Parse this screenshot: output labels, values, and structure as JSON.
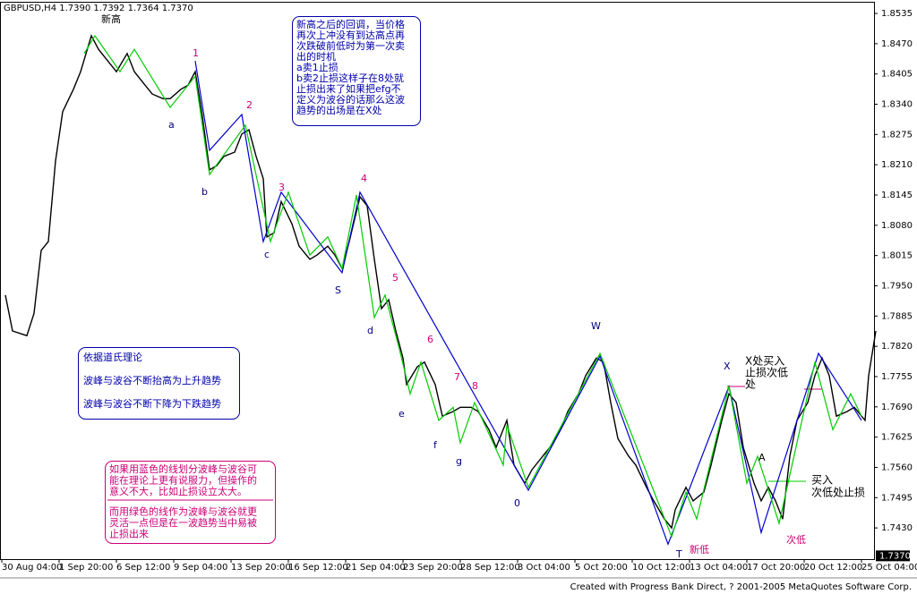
{
  "header": "GBPUSD,H4  1.7390 1.7392 1.7364 1.7370",
  "footer": "Created with Progress Bank Direct, ? 2001-2005 MetaQuotes Software Corp.",
  "chart_data": {
    "type": "line",
    "series": [
      {
        "color": "#000000",
        "x": [
          1,
          3,
          7,
          9,
          11,
          13,
          15,
          17,
          20,
          22,
          25,
          27,
          30,
          32,
          35,
          37,
          40,
          42,
          45,
          47,
          50,
          52,
          54,
          56,
          58,
          60,
          62,
          65,
          67,
          69,
          71,
          73,
          74,
          76,
          78,
          81,
          83,
          86,
          88,
          91,
          93,
          95,
          97,
          100,
          102,
          104,
          106,
          108,
          110,
          112,
          113,
          116,
          118,
          121,
          123,
          126,
          128,
          131,
          133,
          136,
          138,
          141,
          143,
          146,
          148,
          151,
          153,
          156,
          158,
          161,
          163,
          166,
          168,
          170,
          172,
          175,
          177,
          180,
          182,
          185,
          187,
          188,
          191,
          193,
          196,
          198,
          201,
          203,
          205,
          207,
          210,
          212,
          214,
          216,
          218,
          220,
          222,
          225,
          227,
          229,
          231,
          233,
          236,
          238,
          241,
          242,
          244
        ],
        "values": [
          1.793,
          1.7853,
          1.7843,
          1.7891,
          1.8026,
          1.8045,
          1.8218,
          1.8324,
          1.8372,
          1.841,
          1.8487,
          1.8458,
          1.8429,
          1.841,
          1.8449,
          1.841,
          1.8381,
          1.8362,
          1.8352,
          1.8352,
          1.8372,
          1.8381,
          1.841,
          1.8314,
          1.8199,
          1.8208,
          1.8228,
          1.8237,
          1.8276,
          1.8285,
          1.8228,
          1.818,
          1.8055,
          1.8064,
          1.8131,
          1.8083,
          1.8035,
          1.8007,
          1.8016,
          1.8035,
          1.8016,
          1.7987,
          1.8045,
          1.8141,
          1.8122,
          1.8007,
          1.7901,
          1.792,
          1.7853,
          1.7795,
          1.7738,
          1.7776,
          1.7786,
          1.7738,
          1.767,
          1.768,
          1.7689,
          1.7689,
          1.768,
          1.7641,
          1.7603,
          1.7661,
          1.7565,
          1.7526,
          1.7555,
          1.7584,
          1.7603,
          1.7641,
          1.768,
          1.7718,
          1.7757,
          1.7795,
          1.7786,
          1.7699,
          1.7622,
          1.7584,
          1.7565,
          1.7517,
          1.7488,
          1.7449,
          1.743,
          1.7469,
          1.7517,
          1.7488,
          1.7507,
          1.7565,
          1.7661,
          1.7718,
          1.7699,
          1.7603,
          1.7526,
          1.7488,
          1.7517,
          1.7488,
          1.7449,
          1.7584,
          1.7661,
          1.7699,
          1.7757,
          1.7795,
          1.7757,
          1.767,
          1.768,
          1.7689,
          1.7661,
          1.7757,
          1.7853
        ]
      },
      {
        "color": "#0000cc",
        "x": [
          54,
          58,
          67,
          73,
          78,
          95,
          100,
          147,
          167,
          186,
          203,
          212,
          228,
          240
        ],
        "values": [
          1.8433,
          1.8241,
          1.8318,
          1.8045,
          1.8151,
          1.7978,
          1.8151,
          1.7511,
          1.7799,
          1.7395,
          1.7734,
          1.742,
          1.7805,
          1.7661
        ]
      },
      {
        "color": "#00cc00",
        "x": [
          23,
          26,
          33,
          37,
          47,
          54,
          58,
          68,
          75,
          80,
          86,
          91,
          95,
          99,
          104,
          107,
          111,
          114,
          117,
          122,
          126,
          128,
          132,
          140,
          141,
          147,
          167,
          187,
          191,
          194,
          203,
          208,
          211,
          217,
          227,
          232,
          237,
          240
        ],
        "values": [
          1.8449,
          1.8487,
          1.841,
          1.8458,
          1.8333,
          1.84,
          1.8189,
          1.8295,
          1.8045,
          1.8151,
          1.8016,
          1.8055,
          1.7987,
          1.8145,
          1.7882,
          1.793,
          1.7814,
          1.7718,
          1.7786,
          1.7661,
          1.7689,
          1.7613,
          1.7699,
          1.7565,
          1.7651,
          1.7517,
          1.7805,
          1.7411,
          1.7507,
          1.7449,
          1.7734,
          1.7526,
          1.7584,
          1.744,
          1.7786,
          1.7641,
          1.7718,
          1.767
        ]
      }
    ],
    "xlim": [
      -0.5,
      243.5
    ],
    "xticks": [
      {
        "value": 0,
        "label": "30 Aug 04:00"
      },
      {
        "value": 16,
        "label": "1 Sep 20:00"
      },
      {
        "value": 32,
        "label": "6 Sep 12:00"
      },
      {
        "value": 48,
        "label": "9 Sep 04:00"
      },
      {
        "value": 64,
        "label": "13 Sep 20:00"
      },
      {
        "value": 80,
        "label": "16 Sep 12:00"
      },
      {
        "value": 96,
        "label": "21 Sep 04:00"
      },
      {
        "value": 112,
        "label": "23 Sep 20:00"
      },
      {
        "value": 128,
        "label": "28 Sep 12:00"
      },
      {
        "value": 144,
        "label": "3 Oct 04:00"
      },
      {
        "value": 160,
        "label": "5 Oct 20:00"
      },
      {
        "value": 176,
        "label": "10 Oct 12:00"
      },
      {
        "value": 192,
        "label": "13 Oct 04:00"
      },
      {
        "value": 208,
        "label": "17 Oct 20:00"
      },
      {
        "value": 224,
        "label": "20 Oct 12:00"
      },
      {
        "value": 240,
        "label": "25 Oct 04:00"
      }
    ],
    "ylim": [
      1.7363,
      1.856
    ],
    "yticks": [
      1.8535,
      {
        "value": 1.847,
        "label": "1.8470"
      },
      1.8405,
      {
        "value": 1.834,
        "label": "1.8340"
      },
      1.8275,
      {
        "value": 1.821,
        "label": "1.8210"
      },
      1.8145,
      {
        "value": 1.808,
        "label": "1.8080"
      },
      1.8015,
      {
        "value": 1.795,
        "label": "1.7950"
      },
      1.7885,
      {
        "value": 1.782,
        "label": "1.7820"
      },
      1.7755,
      {
        "value": 1.769,
        "label": "1.7690"
      },
      1.7625,
      {
        "value": 1.756,
        "label": "1.7560"
      },
      1.7495,
      {
        "value": 1.743,
        "label": "1.7430"
      }
    ],
    "last_price": {
      "value": 1.737,
      "label": "1.7370"
    },
    "annotations": [
      "新高",
      "1",
      "2",
      "a",
      "b",
      "c",
      "3",
      "4",
      "S",
      "5",
      "d",
      "6",
      "e",
      "7",
      "8",
      "f",
      "g",
      "0",
      "W",
      "X",
      "T",
      "新低",
      "A",
      "次低",
      "X处买入",
      "止损次低",
      "处",
      "买入",
      "次低处止损"
    ],
    "notes": [
      [
        "新高之后的回调，当价格",
        "再次上冲没有到达高点再",
        "次跌破前低时为第一次卖",
        "出的时机",
        "a卖1止损",
        "b卖2止损这样子在8处就",
        "止损出来了如果把efg不",
        "定义为波谷的话那么这波",
        "趋势的出场是在X处"
      ],
      [
        "依据道氏理论",
        "波峰与波谷不断抬高为上升趋势",
        "波峰与波谷不断下降为下跌趋势"
      ],
      [
        "如果用蓝色的线划分波峰与波谷可",
        "能在理论上更有说服力，但操作的",
        "意义不大，比如止损设立太大。",
        "而用绿色的线作为波峰与波谷就更",
        "灵活一点但是在一波趋势当中易被",
        "止损出来"
      ]
    ]
  }
}
